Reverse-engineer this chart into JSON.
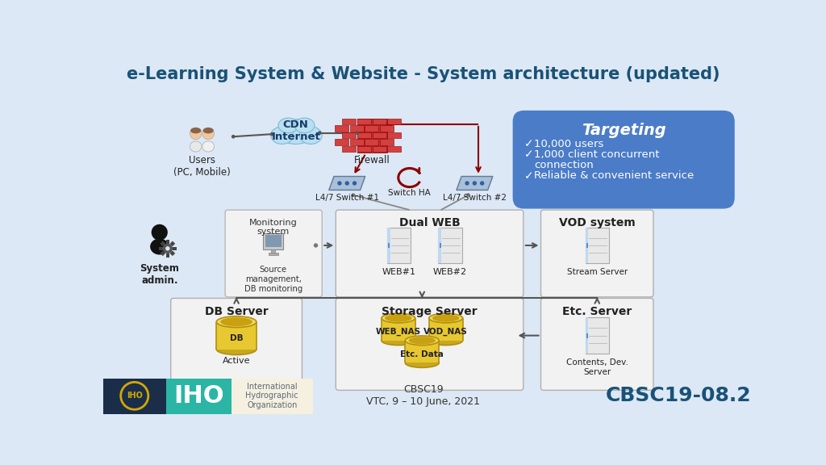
{
  "title": "e-Learning System & Website - System architecture (updated)",
  "title_color": "#1a5276",
  "bg_color": "#dce8f5",
  "footer_left_bg1": "#1a2e4a",
  "footer_left_bg2": "#2ab5a5",
  "footer_left_bg3": "#f5f0e0",
  "footer_center_text": "CBSC19\nVTC, 9 – 10 June, 2021",
  "footer_right_text": "CBSC19-08.2",
  "footer_right_color": "#1a5276",
  "targeting_title": "Targeting",
  "targeting_items": [
    "10,000 users",
    "1,000 client concurrent\nconnection",
    "Reliable & convenient service"
  ],
  "targeting_bg": "#4b7cc8",
  "monitoring_label": "Monitoring\nsystem",
  "monitoring_sub": "Source\nmanagement,\nDB monitoring",
  "dual_web_label": "Dual WEB",
  "vod_label": "VOD system",
  "db_server_label": "DB Server",
  "storage_server_label": "Storage Server",
  "etc_server_label": "Etc. Server",
  "users_label": "Users\n(PC, Mobile)",
  "cdn_label": "CDN\nInternet",
  "firewall_label": "Firewall",
  "switch1_label": "L4/7 Switch #1",
  "switch2_label": "L4/7 Switch #2",
  "switch_ha_label": "Switch HA",
  "system_admin_label": "System\nadmin.",
  "web1_label": "WEB#1",
  "web2_label": "WEB#2",
  "stream_label": "Stream Server",
  "db_label": "DB",
  "db_sub": "Active",
  "web_nas_label": "WEB_NAS",
  "vod_nas_label": "VOD_NAS",
  "etc_data_label": "Etc. Data",
  "contents_label": "Contents, Dev.\nServer",
  "panel_bg": "#efefef",
  "panel_edge": "#b0b0b0",
  "dark_panel_bg": "#d8d8d8",
  "dark_panel_edge": "#a0a0a0"
}
